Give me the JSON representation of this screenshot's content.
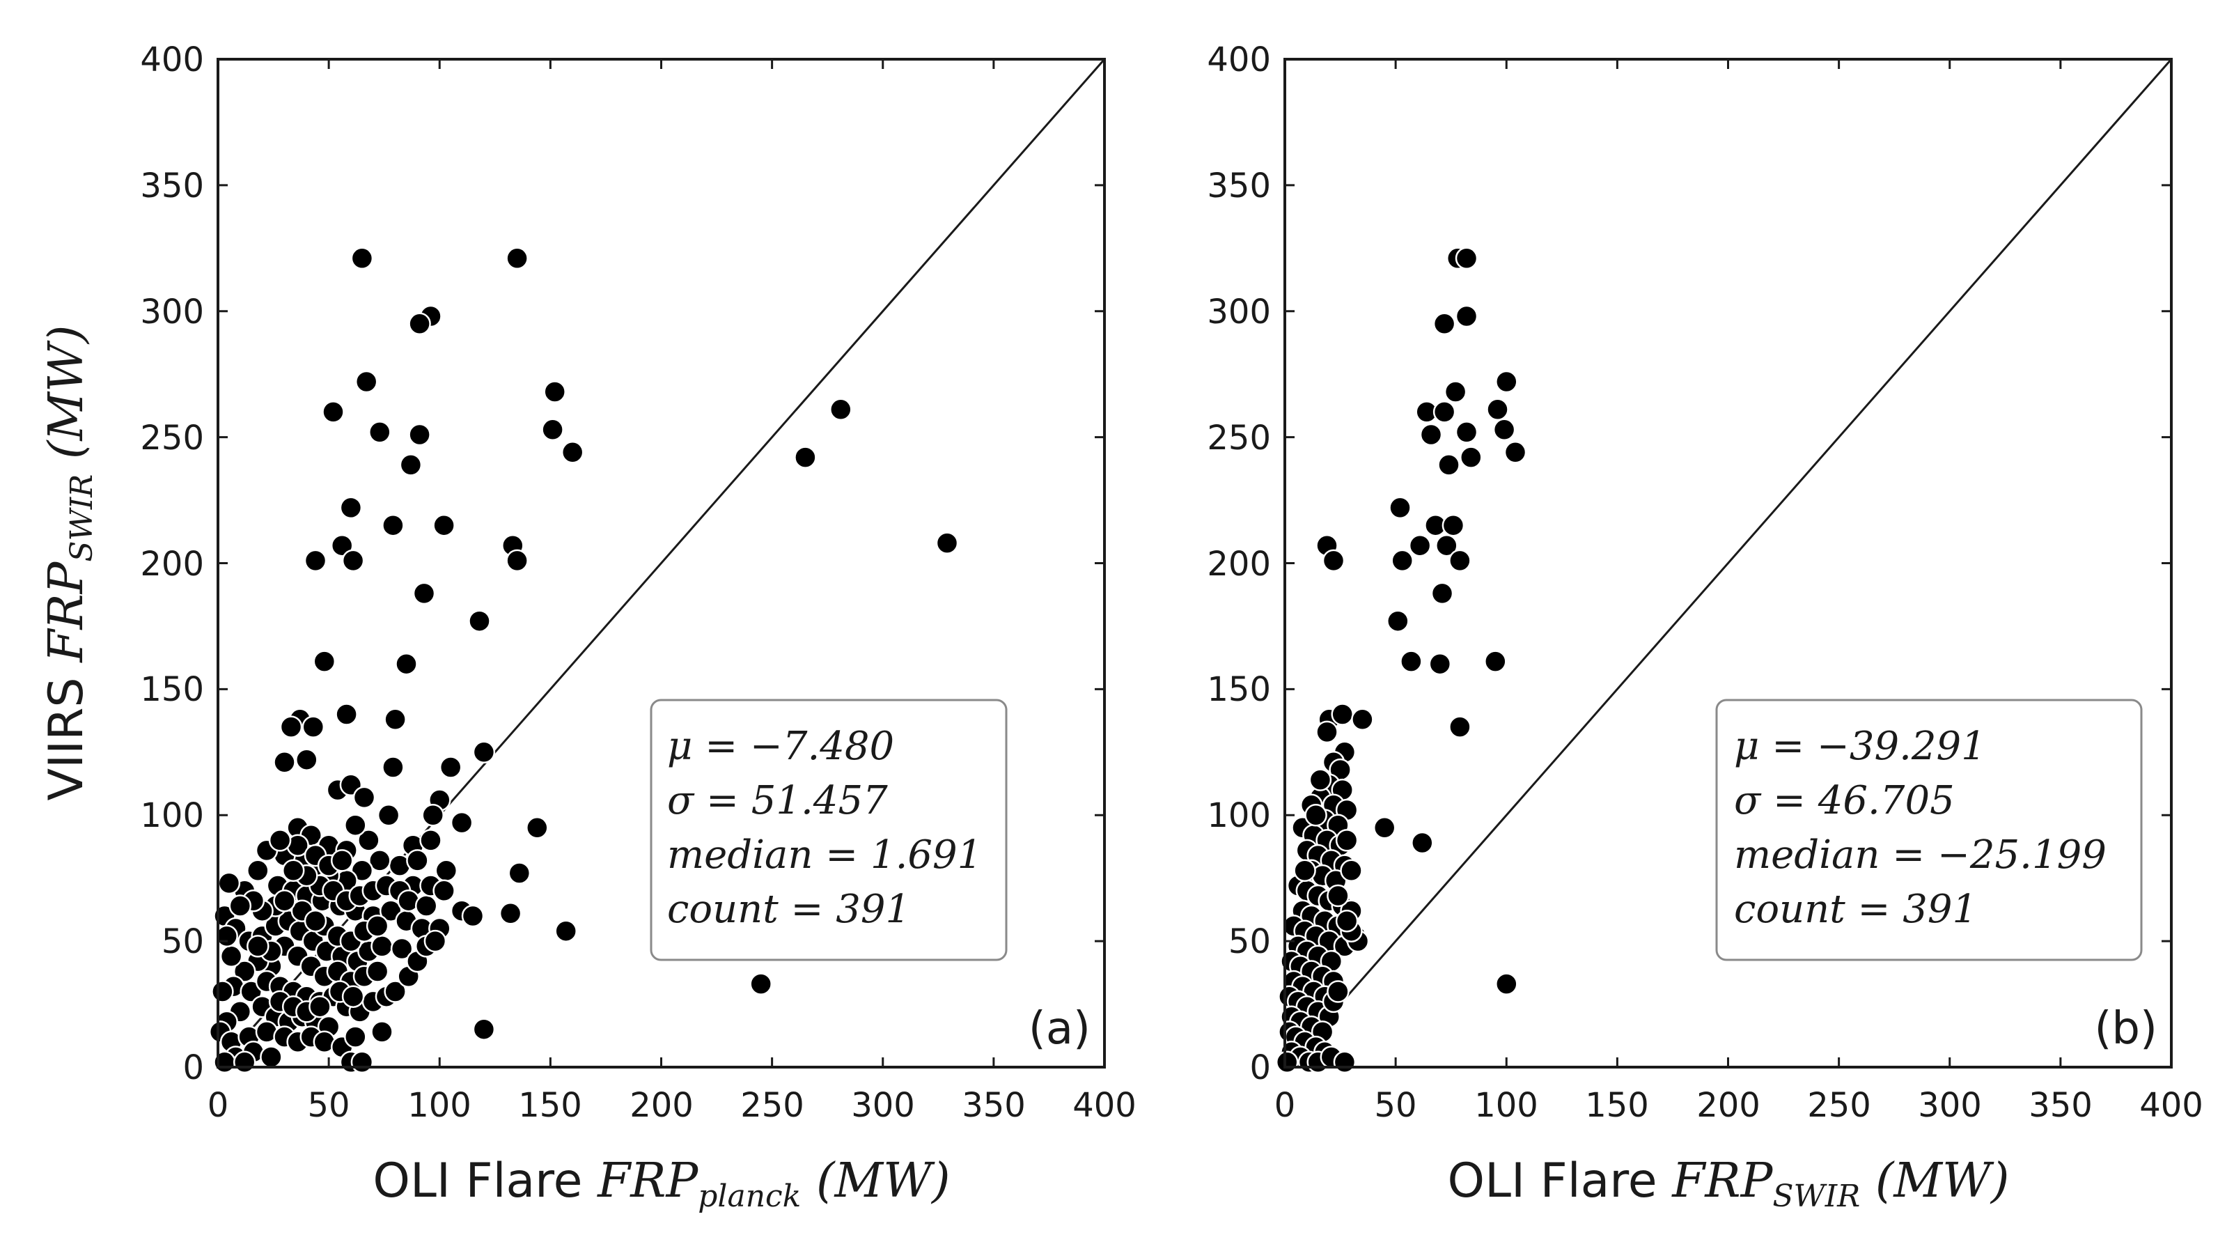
{
  "chart_data": [
    {
      "type": "scatter",
      "panel_label": "(a)",
      "xlabel_text": "OLI Flare ",
      "xlabel_math": "FRP",
      "xlabel_sub": "planck",
      "xlabel_unit": " (MW)",
      "ylabel_text": "VIIRS ",
      "ylabel_math": "FRP",
      "ylabel_sub": "SWIR",
      "ylabel_unit": " (MW)",
      "xlim": [
        0,
        400
      ],
      "ylim": [
        0,
        400
      ],
      "xticks": [
        "0",
        "50",
        "100",
        "150",
        "200",
        "250",
        "300",
        "350",
        "400"
      ],
      "yticks": [
        "0",
        "50",
        "100",
        "150",
        "200",
        "250",
        "300",
        "350",
        "400"
      ],
      "reference_line": "y = x",
      "stats": [
        "μ = −7.480",
        "σ = 51.457",
        "median = 1.691",
        "count = 391"
      ],
      "points": [
        [
          65,
          321
        ],
        [
          135,
          321
        ],
        [
          96,
          298
        ],
        [
          91,
          295
        ],
        [
          67,
          272
        ],
        [
          152,
          268
        ],
        [
          52,
          260
        ],
        [
          73,
          252
        ],
        [
          91,
          251
        ],
        [
          151,
          253
        ],
        [
          87,
          239
        ],
        [
          160,
          244
        ],
        [
          265,
          242
        ],
        [
          281,
          261
        ],
        [
          329,
          208
        ],
        [
          60,
          222
        ],
        [
          79,
          215
        ],
        [
          102,
          215
        ],
        [
          56,
          207
        ],
        [
          133,
          207
        ],
        [
          44,
          201
        ],
        [
          61,
          201
        ],
        [
          135,
          201
        ],
        [
          93,
          188
        ],
        [
          118,
          177
        ],
        [
          48,
          161
        ],
        [
          85,
          160
        ],
        [
          58,
          140
        ],
        [
          80,
          138
        ],
        [
          37,
          138
        ],
        [
          33,
          135
        ],
        [
          43,
          135
        ],
        [
          30,
          121
        ],
        [
          40,
          122
        ],
        [
          79,
          119
        ],
        [
          105,
          119
        ],
        [
          120,
          125
        ],
        [
          54,
          110
        ],
        [
          60,
          112
        ],
        [
          66,
          107
        ],
        [
          100,
          106
        ],
        [
          77,
          100
        ],
        [
          97,
          100
        ],
        [
          110,
          97
        ],
        [
          144,
          95
        ],
        [
          36,
          95
        ],
        [
          42,
          92
        ],
        [
          50,
          88
        ],
        [
          58,
          86
        ],
        [
          68,
          90
        ],
        [
          88,
          88
        ],
        [
          96,
          90
        ],
        [
          103,
          78
        ],
        [
          88,
          72
        ],
        [
          82,
          80
        ],
        [
          73,
          82
        ],
        [
          65,
          78
        ],
        [
          58,
          74
        ],
        [
          50,
          76
        ],
        [
          44,
          80
        ],
        [
          38,
          82
        ],
        [
          30,
          84
        ],
        [
          22,
          86
        ],
        [
          18,
          78
        ],
        [
          27,
          72
        ],
        [
          34,
          70
        ],
        [
          40,
          68
        ],
        [
          47,
          66
        ],
        [
          55,
          64
        ],
        [
          62,
          62
        ],
        [
          70,
          60
        ],
        [
          78,
          62
        ],
        [
          85,
          58
        ],
        [
          92,
          55
        ],
        [
          100,
          55
        ],
        [
          110,
          62
        ],
        [
          115,
          60
        ],
        [
          132,
          61
        ],
        [
          136,
          77
        ],
        [
          157,
          54
        ],
        [
          12,
          70
        ],
        [
          5,
          73
        ],
        [
          3,
          60
        ],
        [
          8,
          55
        ],
        [
          14,
          50
        ],
        [
          20,
          52
        ],
        [
          26,
          56
        ],
        [
          32,
          58
        ],
        [
          37,
          54
        ],
        [
          43,
          50
        ],
        [
          49,
          46
        ],
        [
          56,
          44
        ],
        [
          63,
          42
        ],
        [
          68,
          46
        ],
        [
          74,
          48
        ],
        [
          83,
          47
        ],
        [
          30,
          48
        ],
        [
          36,
          44
        ],
        [
          42,
          40
        ],
        [
          48,
          36
        ],
        [
          54,
          38
        ],
        [
          60,
          34
        ],
        [
          66,
          36
        ],
        [
          72,
          38
        ],
        [
          24,
          40
        ],
        [
          18,
          42
        ],
        [
          12,
          38
        ],
        [
          7,
          32
        ],
        [
          2,
          30
        ],
        [
          15,
          30
        ],
        [
          22,
          34
        ],
        [
          28,
          32
        ],
        [
          34,
          30
        ],
        [
          40,
          28
        ],
        [
          46,
          26
        ],
        [
          52,
          28
        ],
        [
          58,
          24
        ],
        [
          64,
          22
        ],
        [
          70,
          26
        ],
        [
          76,
          28
        ],
        [
          20,
          24
        ],
        [
          26,
          20
        ],
        [
          32,
          18
        ],
        [
          38,
          20
        ],
        [
          44,
          18
        ],
        [
          50,
          16
        ],
        [
          10,
          22
        ],
        [
          4,
          18
        ],
        [
          1,
          14
        ],
        [
          6,
          10
        ],
        [
          14,
          12
        ],
        [
          22,
          14
        ],
        [
          30,
          12
        ],
        [
          36,
          10
        ],
        [
          42,
          12
        ],
        [
          48,
          10
        ],
        [
          56,
          8
        ],
        [
          62,
          12
        ],
        [
          8,
          4
        ],
        [
          16,
          6
        ],
        [
          24,
          4
        ],
        [
          3,
          2
        ],
        [
          12,
          2
        ],
        [
          60,
          2
        ],
        [
          65,
          2
        ],
        [
          74,
          14
        ],
        [
          120,
          15
        ],
        [
          245,
          33
        ],
        [
          48,
          56
        ],
        [
          54,
          52
        ],
        [
          60,
          50
        ],
        [
          66,
          54
        ],
        [
          72,
          56
        ],
        [
          38,
          62
        ],
        [
          44,
          58
        ],
        [
          26,
          64
        ],
        [
          20,
          62
        ],
        [
          30,
          66
        ],
        [
          46,
          72
        ],
        [
          52,
          70
        ],
        [
          58,
          66
        ],
        [
          64,
          68
        ],
        [
          70,
          70
        ],
        [
          76,
          72
        ],
        [
          82,
          70
        ],
        [
          86,
          66
        ],
        [
          94,
          64
        ],
        [
          96,
          72
        ],
        [
          102,
          70
        ],
        [
          90,
          82
        ],
        [
          36,
          88
        ],
        [
          28,
          90
        ],
        [
          62,
          96
        ],
        [
          44,
          84
        ],
        [
          50,
          80
        ],
        [
          56,
          82
        ],
        [
          40,
          76
        ],
        [
          34,
          78
        ],
        [
          16,
          66
        ],
        [
          10,
          64
        ],
        [
          24,
          46
        ],
        [
          18,
          48
        ],
        [
          6,
          44
        ],
        [
          4,
          52
        ],
        [
          28,
          26
        ],
        [
          34,
          24
        ],
        [
          40,
          22
        ],
        [
          46,
          24
        ],
        [
          80,
          30
        ],
        [
          86,
          36
        ],
        [
          90,
          42
        ],
        [
          94,
          48
        ],
        [
          98,
          50
        ],
        [
          55,
          30
        ],
        [
          61,
          28
        ]
      ]
    },
    {
      "type": "scatter",
      "panel_label": "(b)",
      "xlabel_text": "OLI Flare ",
      "xlabel_math": "FRP",
      "xlabel_sub": "SWIR",
      "xlabel_unit": " (MW)",
      "xlim": [
        0,
        400
      ],
      "ylim": [
        0,
        400
      ],
      "xticks": [
        "0",
        "50",
        "100",
        "150",
        "200",
        "250",
        "300",
        "350",
        "400"
      ],
      "yticks": [
        "0",
        "50",
        "100",
        "150",
        "200",
        "250",
        "300",
        "350",
        "400"
      ],
      "reference_line": "y = x",
      "stats": [
        "μ = −39.291",
        "σ = 46.705",
        "median = −25.199",
        "count = 391"
      ],
      "points": [
        [
          78,
          321
        ],
        [
          82,
          321
        ],
        [
          82,
          298
        ],
        [
          72,
          295
        ],
        [
          100,
          272
        ],
        [
          77,
          268
        ],
        [
          64,
          260
        ],
        [
          72,
          260
        ],
        [
          96,
          261
        ],
        [
          66,
          251
        ],
        [
          82,
          252
        ],
        [
          99,
          253
        ],
        [
          74,
          239
        ],
        [
          104,
          244
        ],
        [
          84,
          242
        ],
        [
          52,
          222
        ],
        [
          68,
          215
        ],
        [
          76,
          215
        ],
        [
          61,
          207
        ],
        [
          73,
          207
        ],
        [
          19,
          207
        ],
        [
          53,
          201
        ],
        [
          22,
          201
        ],
        [
          79,
          201
        ],
        [
          71,
          188
        ],
        [
          51,
          177
        ],
        [
          57,
          161
        ],
        [
          70,
          160
        ],
        [
          95,
          161
        ],
        [
          79,
          135
        ],
        [
          20,
          138
        ],
        [
          26,
          140
        ],
        [
          35,
          138
        ],
        [
          19,
          133
        ],
        [
          27,
          125
        ],
        [
          22,
          121
        ],
        [
          25,
          118
        ],
        [
          20,
          112
        ],
        [
          26,
          110
        ],
        [
          16,
          107
        ],
        [
          22,
          104
        ],
        [
          28,
          102
        ],
        [
          18,
          98
        ],
        [
          24,
          96
        ],
        [
          8,
          95
        ],
        [
          13,
          92
        ],
        [
          19,
          90
        ],
        [
          25,
          88
        ],
        [
          45,
          95
        ],
        [
          62,
          89
        ],
        [
          10,
          86
        ],
        [
          15,
          84
        ],
        [
          21,
          82
        ],
        [
          27,
          80
        ],
        [
          12,
          78
        ],
        [
          17,
          76
        ],
        [
          23,
          74
        ],
        [
          6,
          72
        ],
        [
          10,
          70
        ],
        [
          15,
          68
        ],
        [
          20,
          66
        ],
        [
          26,
          64
        ],
        [
          30,
          62
        ],
        [
          8,
          62
        ],
        [
          12,
          60
        ],
        [
          18,
          58
        ],
        [
          24,
          56
        ],
        [
          4,
          56
        ],
        [
          9,
          54
        ],
        [
          14,
          52
        ],
        [
          20,
          50
        ],
        [
          27,
          48
        ],
        [
          32,
          52
        ],
        [
          33,
          50
        ],
        [
          6,
          48
        ],
        [
          10,
          46
        ],
        [
          15,
          44
        ],
        [
          21,
          42
        ],
        [
          3,
          42
        ],
        [
          7,
          40
        ],
        [
          12,
          38
        ],
        [
          17,
          36
        ],
        [
          22,
          34
        ],
        [
          4,
          34
        ],
        [
          8,
          32
        ],
        [
          13,
          30
        ],
        [
          18,
          28
        ],
        [
          2,
          28
        ],
        [
          6,
          26
        ],
        [
          10,
          24
        ],
        [
          15,
          22
        ],
        [
          20,
          20
        ],
        [
          3,
          20
        ],
        [
          7,
          18
        ],
        [
          12,
          16
        ],
        [
          17,
          14
        ],
        [
          2,
          14
        ],
        [
          5,
          12
        ],
        [
          9,
          10
        ],
        [
          14,
          8
        ],
        [
          18,
          6
        ],
        [
          3,
          6
        ],
        [
          7,
          4
        ],
        [
          11,
          2
        ],
        [
          15,
          2
        ],
        [
          21,
          4
        ],
        [
          27,
          2
        ],
        [
          1,
          2
        ],
        [
          22,
          26
        ],
        [
          24,
          30
        ],
        [
          100,
          33
        ],
        [
          30,
          54
        ],
        [
          16,
          114
        ],
        [
          12,
          104
        ],
        [
          28,
          90
        ],
        [
          30,
          78
        ],
        [
          24,
          68
        ],
        [
          28,
          58
        ],
        [
          9,
          78
        ],
        [
          14,
          100
        ]
      ]
    }
  ]
}
